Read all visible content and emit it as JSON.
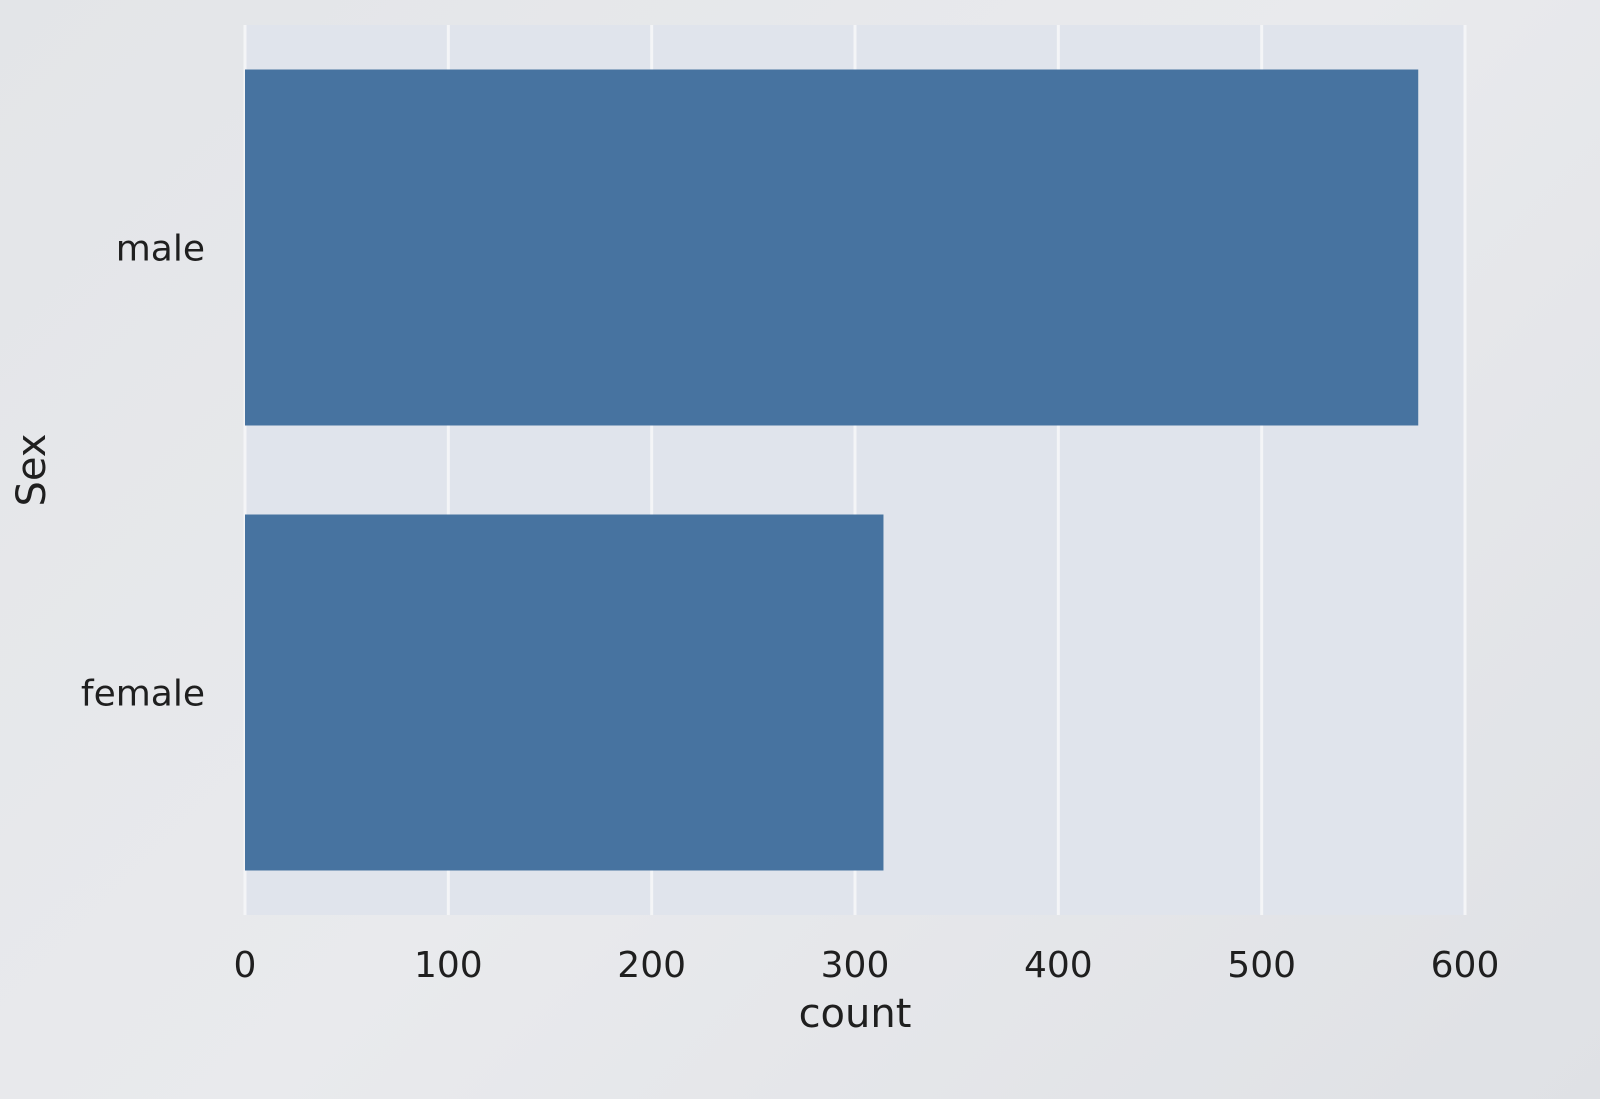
{
  "chart_data": {
    "type": "bar",
    "orientation": "horizontal",
    "categories": [
      "male",
      "female"
    ],
    "values": [
      577,
      314
    ],
    "xlabel": "count",
    "ylabel": "Sex",
    "xlim": [
      0,
      600
    ],
    "xticks": [
      0,
      100,
      200,
      300,
      400,
      500,
      600
    ],
    "grid": "x",
    "colors": {
      "bar": "#4773a0",
      "plot_background": "#e0e4ec",
      "grid": "#f4f5f7"
    }
  }
}
